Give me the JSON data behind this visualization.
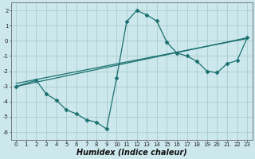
{
  "xlabel": "Humidex (Indice chaleur)",
  "background_color": "#cce8ec",
  "grid_color": "#aacccc",
  "line_color": "#1a7070",
  "xlim": [
    -0.5,
    23.5
  ],
  "ylim": [
    -6.5,
    2.5
  ],
  "xticks": [
    0,
    1,
    2,
    3,
    4,
    5,
    6,
    7,
    8,
    9,
    10,
    11,
    12,
    13,
    14,
    15,
    16,
    17,
    18,
    19,
    20,
    21,
    22,
    23
  ],
  "yticks": [
    -6,
    -5,
    -4,
    -3,
    -2,
    -1,
    0,
    1,
    2
  ],
  "line1_x": [
    0,
    23
  ],
  "line1_y": [
    -3.0,
    0.2
  ],
  "line2_x": [
    0,
    23
  ],
  "line2_y": [
    -2.8,
    0.15
  ],
  "curve_x": [
    0,
    2,
    3,
    4,
    5,
    6,
    7,
    8,
    9,
    10,
    11,
    12,
    13,
    14,
    15,
    16,
    17,
    18,
    19,
    20,
    21,
    22,
    23
  ],
  "curve_y": [
    -3.0,
    -2.6,
    -3.5,
    -3.9,
    -4.55,
    -4.8,
    -5.2,
    -5.35,
    -5.8,
    -2.45,
    1.25,
    2.0,
    1.7,
    1.3,
    -0.1,
    -0.8,
    -1.0,
    -1.35,
    -2.0,
    -2.1,
    -1.5,
    -1.3,
    0.2
  ],
  "marker": "D",
  "markersize": 2.5,
  "xlabel_fontsize": 7,
  "tick_fontsize": 5,
  "linewidth": 0.9
}
